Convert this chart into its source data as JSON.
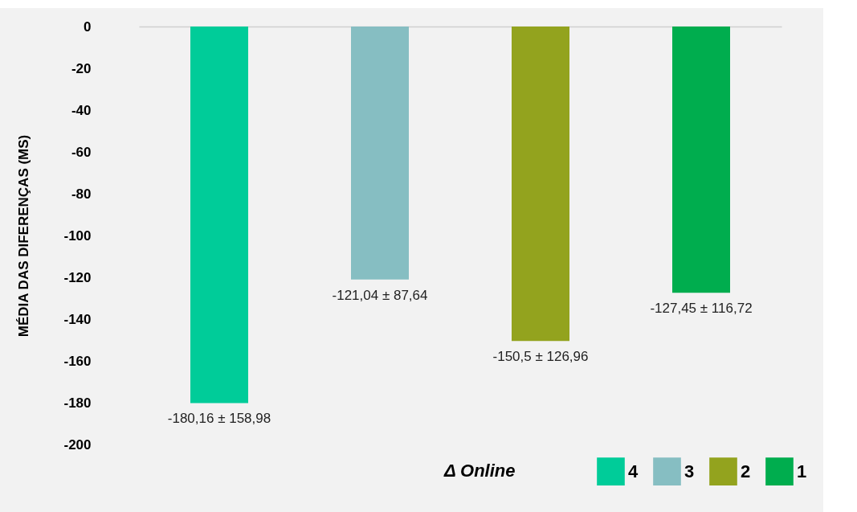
{
  "chart_data": {
    "type": "bar",
    "ylabel": "MÉDIA DAS DIFERENÇAS (MS)",
    "legend_title": "Δ Online",
    "categories": [
      null,
      null,
      null,
      null
    ],
    "series": [
      {
        "name": "4",
        "color": "#00cc99",
        "values": [
          -180.16,
          null,
          null,
          null
        ],
        "value_labels": [
          "-180,16 ± 158,98",
          null,
          null,
          null
        ]
      },
      {
        "name": "3",
        "color": "#86bec2",
        "values": [
          null,
          -121.04,
          null,
          null
        ],
        "value_labels": [
          null,
          "-121,04 ± 87,64",
          null,
          null
        ]
      },
      {
        "name": "2",
        "color": "#93a31e",
        "values": [
          null,
          null,
          -150.5,
          null
        ],
        "value_labels": [
          null,
          null,
          "-150,5 ± 126,96",
          null
        ]
      },
      {
        "name": "1",
        "color": "#00ad4e",
        "values": [
          null,
          null,
          null,
          -127.45
        ],
        "value_labels": [
          null,
          null,
          null,
          "-127,45 ± 116,72"
        ]
      }
    ],
    "ylim": [
      -200,
      0
    ],
    "yticks": [
      0,
      -20,
      -40,
      -60,
      -80,
      -100,
      -120,
      -140,
      -160,
      -180,
      -200
    ],
    "grid": false,
    "legend": "bottom right",
    "tick_labels": "y"
  }
}
